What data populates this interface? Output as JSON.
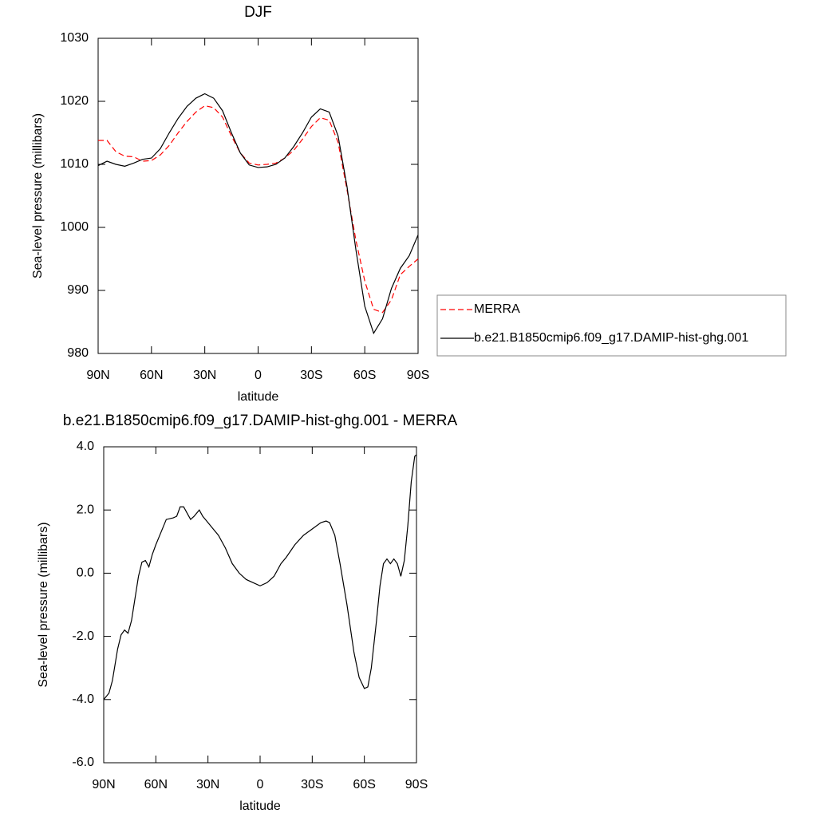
{
  "chart_data": [
    {
      "type": "line",
      "title": "DJF",
      "x_label": "latitude",
      "y_label": "Sea-level pressure (millibars)",
      "x": [
        90,
        85,
        80,
        75,
        70,
        65,
        60,
        55,
        50,
        45,
        40,
        35,
        30,
        25,
        20,
        15,
        10,
        5,
        0,
        -5,
        -10,
        -15,
        -20,
        -25,
        -30,
        -35,
        -40,
        -45,
        -50,
        -55,
        -60,
        -65,
        -70,
        -75,
        -80,
        -85,
        -90
      ],
      "series": [
        {
          "name": "MERRA",
          "color": "#ff0000",
          "line_style": "dashed",
          "values": [
            1013.8,
            1013.8,
            1012,
            1011.3,
            1011.2,
            1010.5,
            1010.6,
            1011.5,
            1013,
            1015,
            1016.8,
            1018.3,
            1019.3,
            1019,
            1017.5,
            1014.5,
            1011.8,
            1010.2,
            1009.9,
            1010,
            1010.2,
            1011,
            1012.2,
            1014,
            1016,
            1017.4,
            1017,
            1013.5,
            1006,
            998,
            991.5,
            987,
            986.5,
            988.5,
            992.5,
            993.8,
            995
          ]
        },
        {
          "name": "b.e21.B1850cmip6.f09_g17.DAMIP-hist-ghg.001",
          "color": "#000000",
          "line_style": "solid",
          "values": [
            1009.8,
            1010.5,
            1010,
            1009.7,
            1010.2,
            1010.8,
            1011,
            1012.5,
            1015,
            1017.3,
            1019.2,
            1020.5,
            1021.2,
            1020.5,
            1018.5,
            1015,
            1011.8,
            1009.9,
            1009.5,
            1009.6,
            1010,
            1011,
            1012.8,
            1015,
            1017.5,
            1018.8,
            1018.3,
            1014.5,
            1006.5,
            996.5,
            987.5,
            983.2,
            985.5,
            990.3,
            993.5,
            995.5,
            998.8
          ]
        }
      ],
      "xlim": [
        90,
        -90
      ],
      "xticks": [
        {
          "value": 90,
          "label": "90N"
        },
        {
          "value": 60,
          "label": "60N"
        },
        {
          "value": 30,
          "label": "30N"
        },
        0,
        {
          "value": -30,
          "label": "30S"
        },
        {
          "value": -60,
          "label": "60S"
        },
        {
          "value": -90,
          "label": "90S"
        }
      ],
      "ylim": [
        980,
        1030
      ],
      "yticks": [
        980,
        990,
        1000,
        1010,
        1020,
        1030
      ],
      "legend": "right"
    },
    {
      "type": "line",
      "title": "b.e21.B1850cmip6.f09_g17.DAMIP-hist-ghg.001 - MERRA",
      "x_label": "latitude",
      "y_label": "Sea-level pressure (millibars)",
      "x": [
        90,
        87,
        85,
        82,
        80,
        78,
        76,
        74,
        72,
        70,
        68,
        66,
        64,
        62,
        60,
        57,
        54,
        50,
        48,
        46,
        44,
        42,
        40,
        38,
        35,
        33,
        30,
        27,
        24,
        20,
        16,
        12,
        8,
        4,
        0,
        -4,
        -8,
        -12,
        -15,
        -20,
        -25,
        -30,
        -35,
        -38,
        -40,
        -43,
        -46,
        -50,
        -54,
        -57,
        -60,
        -62,
        -64,
        -67,
        -69,
        -71,
        -73,
        -75,
        -77,
        -79,
        -81,
        -83,
        -85,
        -87,
        -89,
        -90
      ],
      "series": [
        {
          "color": "#000000",
          "line_style": "solid",
          "values": [
            -4.0,
            -3.8,
            -3.4,
            -2.4,
            -1.95,
            -1.8,
            -1.9,
            -1.5,
            -0.8,
            -0.1,
            0.35,
            0.4,
            0.2,
            0.6,
            0.9,
            1.3,
            1.7,
            1.75,
            1.8,
            2.1,
            2.1,
            1.9,
            1.7,
            1.8,
            2.0,
            1.8,
            1.6,
            1.4,
            1.2,
            0.8,
            0.3,
            0.0,
            -0.2,
            -0.3,
            -0.4,
            -0.3,
            -0.1,
            0.3,
            0.5,
            0.9,
            1.2,
            1.4,
            1.6,
            1.65,
            1.6,
            1.2,
            0.3,
            -1.0,
            -2.5,
            -3.3,
            -3.65,
            -3.6,
            -3.0,
            -1.5,
            -0.4,
            0.3,
            0.45,
            0.3,
            0.45,
            0.3,
            -0.1,
            0.4,
            1.5,
            2.9,
            3.7,
            3.75
          ]
        }
      ],
      "xlim": [
        90,
        -90
      ],
      "xticks": [
        {
          "value": 90,
          "label": "90N"
        },
        {
          "value": 60,
          "label": "60N"
        },
        {
          "value": 30,
          "label": "30N"
        },
        0,
        {
          "value": -30,
          "label": "30S"
        },
        {
          "value": -60,
          "label": "60S"
        },
        {
          "value": -90,
          "label": "90S"
        }
      ],
      "ylim": [
        -6,
        4
      ],
      "yticks": [
        {
          "value": -6,
          "label": "-6.0"
        },
        {
          "value": -4,
          "label": "-4.0"
        },
        {
          "value": -2,
          "label": "-2.0"
        },
        {
          "value": 0,
          "label": "0.0"
        },
        {
          "value": 2,
          "label": "2.0"
        },
        {
          "value": 4,
          "label": "4.0"
        }
      ]
    }
  ]
}
